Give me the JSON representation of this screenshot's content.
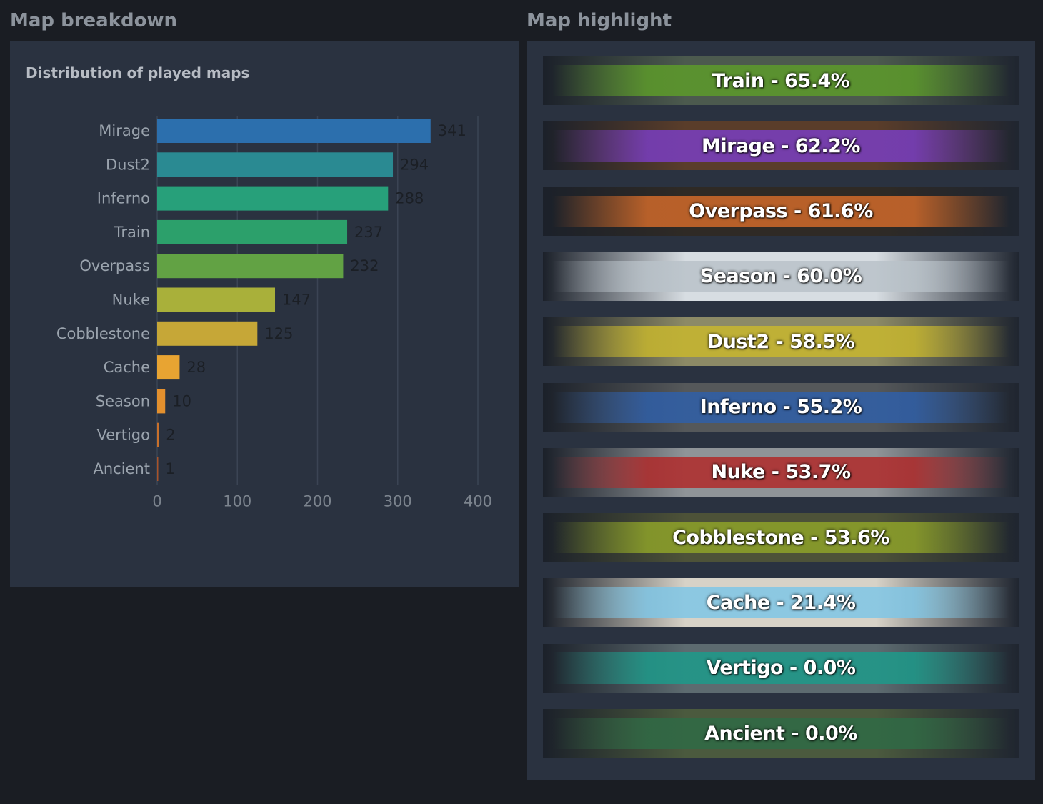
{
  "left_section": {
    "title": "Map breakdown"
  },
  "right_section": {
    "title": "Map highlight"
  },
  "chart_data": {
    "type": "bar",
    "orientation": "horizontal",
    "title": "Distribution of played maps",
    "categories": [
      "Mirage",
      "Dust2",
      "Inferno",
      "Train",
      "Overpass",
      "Nuke",
      "Cobblestone",
      "Cache",
      "Season",
      "Vertigo",
      "Ancient"
    ],
    "values": [
      341,
      294,
      288,
      237,
      232,
      147,
      125,
      28,
      10,
      2,
      1
    ],
    "colors": [
      "#2c6fad",
      "#2a8a92",
      "#27a07a",
      "#2ca06b",
      "#62a244",
      "#a9b03a",
      "#c6a737",
      "#e8a432",
      "#e3902e",
      "#c9702b",
      "#a8532a"
    ],
    "xlim": [
      0,
      400
    ],
    "xticks": [
      "0",
      "100",
      "200",
      "300",
      "400"
    ],
    "grid": true
  },
  "highlights": [
    {
      "label": "Train - 65.4%",
      "color": "#5d9b2a",
      "bg": "#4c5a4e"
    },
    {
      "label": "Mirage - 62.2%",
      "color": "#7a3ec2",
      "bg": "#5a3d2a"
    },
    {
      "label": "Overpass - 61.6%",
      "color": "#d06a2a",
      "bg": "#2f2a25"
    },
    {
      "label": "Season - 60.0%",
      "color": "#b9c2c9",
      "bg": "#d7dde2"
    },
    {
      "label": "Dust2 - 58.5%",
      "color": "#c8b72e",
      "bg": "#8c8a66"
    },
    {
      "label": "Inferno - 55.2%",
      "color": "#2f5fa8",
      "bg": "#55585a"
    },
    {
      "label": "Nuke - 53.7%",
      "color": "#b02a2a",
      "bg": "#8f9498"
    },
    {
      "label": "Cobblestone - 53.6%",
      "color": "#8ea229",
      "bg": "#4d5238"
    },
    {
      "label": "Cache - 21.4%",
      "color": "#7fc6e6",
      "bg": "#d7d2c7"
    },
    {
      "label": "Vertigo - 0.0%",
      "color": "#1d9a8a",
      "bg": "#5d6b70"
    },
    {
      "label": "Ancient - 0.0%",
      "color": "#2f6a45",
      "bg": "#4b5a3e"
    }
  ]
}
